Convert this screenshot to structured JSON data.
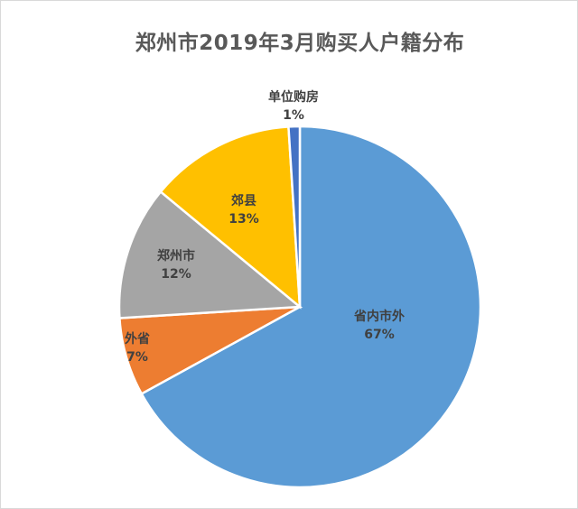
{
  "chart_data": {
    "type": "pie",
    "title": "郑州市2019年3月购买人户籍分布",
    "start_angle": "12 o'clock, clockwise",
    "slices": [
      {
        "label": "省内市外",
        "value": 67,
        "display": "67%",
        "color": "#5b9bd5"
      },
      {
        "label": "外省",
        "value": 7,
        "display": "7%",
        "color": "#ed7d31"
      },
      {
        "label": "郑州市",
        "value": 12,
        "display": "12%",
        "color": "#a5a5a5"
      },
      {
        "label": "郊县",
        "value": 13,
        "display": "13%",
        "color": "#ffc000"
      },
      {
        "label": "单位购房",
        "value": 1,
        "display": "1%",
        "color": "#4472c4"
      }
    ],
    "legend": "none",
    "data_labels": "category name + percentage"
  }
}
